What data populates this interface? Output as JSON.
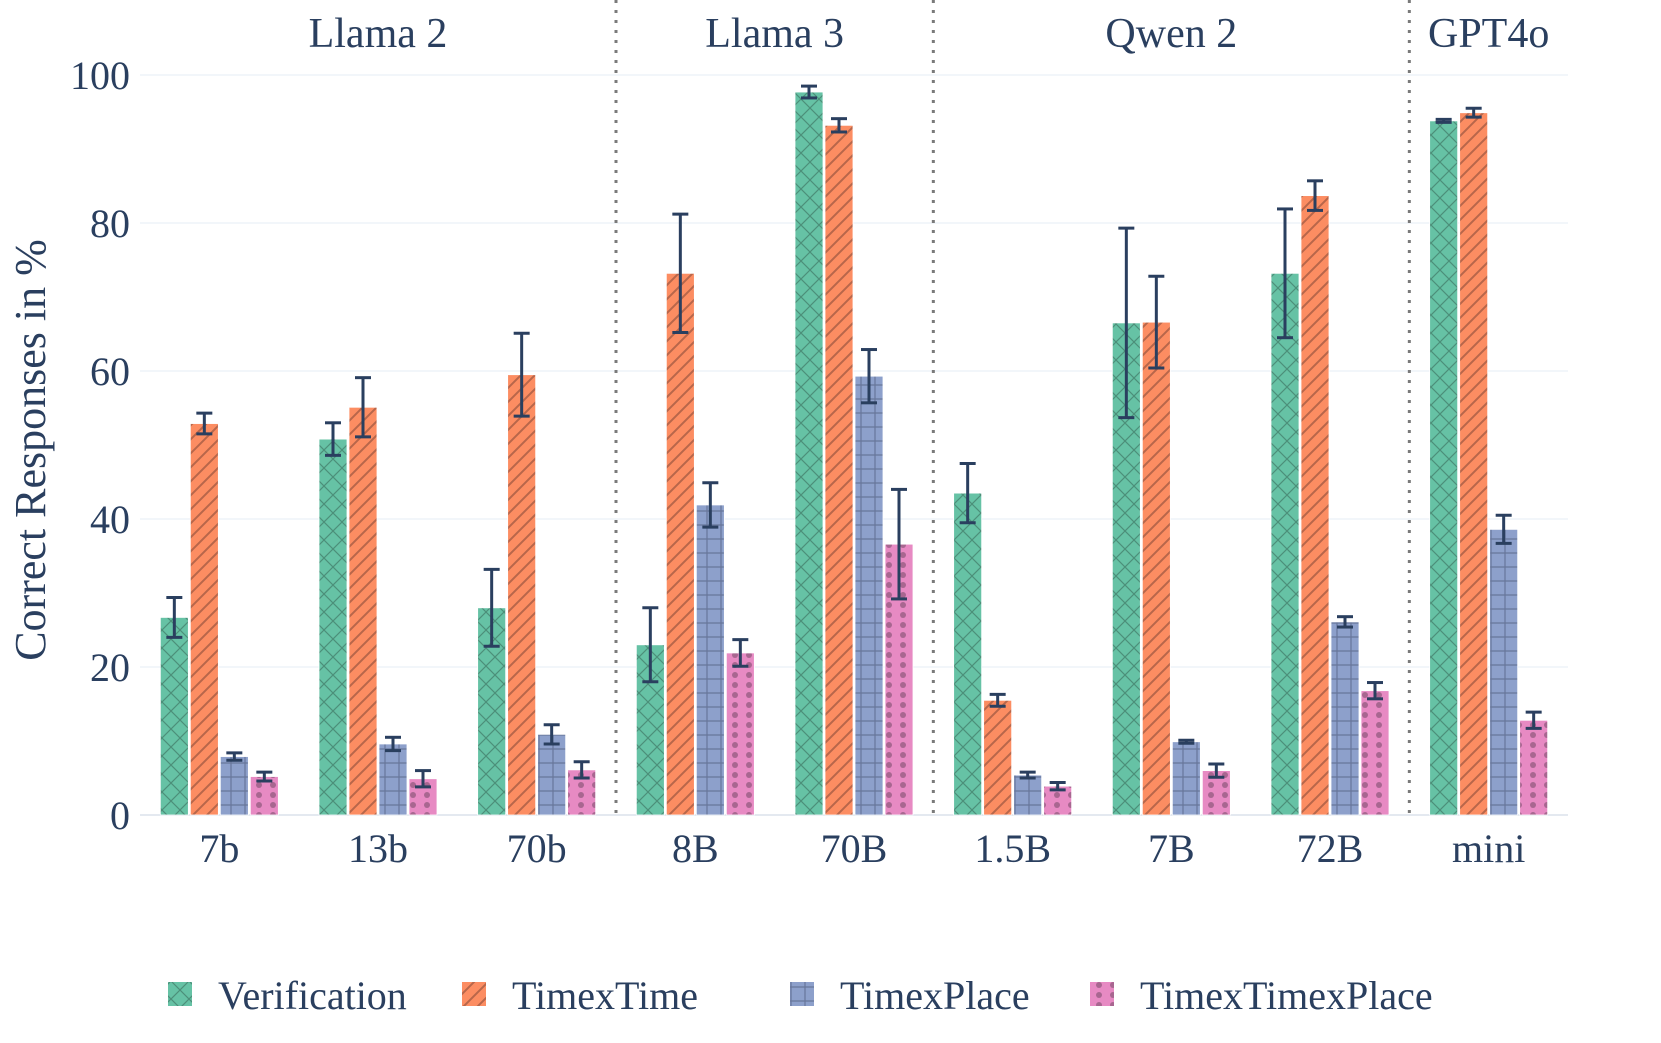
{
  "chart_data": {
    "type": "bar",
    "ylabel": "Correct Responses in %",
    "xlabel": "",
    "ylim": [
      0,
      100
    ],
    "yticks": [
      0,
      20,
      40,
      60,
      80,
      100
    ],
    "grid": true,
    "legend_position": "bottom",
    "groups": [
      {
        "label": "Llama 2",
        "categories": [
          "7b",
          "13b",
          "70b"
        ]
      },
      {
        "label": "Llama 3",
        "categories": [
          "8B",
          "70B"
        ]
      },
      {
        "label": "Qwen 2",
        "categories": [
          "1.5B",
          "7B",
          "72B"
        ]
      },
      {
        "label": "GPT4o",
        "categories": [
          "mini"
        ]
      }
    ],
    "categories": [
      "7b",
      "13b",
      "70b",
      "8B",
      "70B",
      "1.5B",
      "7B",
      "72B",
      "mini"
    ],
    "series": [
      {
        "name": "Verification",
        "color": "#66c2a5",
        "pattern": "crosshatch",
        "values": [
          26.7,
          50.8,
          28.0,
          23.0,
          97.7,
          43.5,
          66.5,
          73.2,
          93.8
        ],
        "error": [
          2.7,
          2.2,
          5.2,
          5.0,
          0.8,
          4.0,
          12.8,
          8.7,
          0.2
        ]
      },
      {
        "name": "TimexTime",
        "color": "#fc8d62",
        "pattern": "diagonal",
        "values": [
          52.9,
          55.1,
          59.5,
          73.2,
          93.2,
          15.5,
          66.6,
          83.7,
          94.9
        ],
        "error": [
          1.4,
          4.0,
          5.6,
          8.0,
          0.9,
          0.8,
          6.2,
          2.0,
          0.6
        ]
      },
      {
        "name": "TimexPlace",
        "color": "#8da0cb",
        "pattern": "grid",
        "values": [
          7.9,
          9.6,
          10.9,
          41.9,
          59.3,
          5.4,
          9.9,
          26.1,
          38.6
        ],
        "error": [
          0.5,
          0.9,
          1.3,
          3.0,
          3.6,
          0.4,
          0.2,
          0.7,
          1.9
        ]
      },
      {
        "name": "TimexTimexPlace",
        "color": "#e78ac3",
        "pattern": "dots",
        "values": [
          5.2,
          4.9,
          6.1,
          21.9,
          36.6,
          3.9,
          6.0,
          16.8,
          12.8
        ],
        "error": [
          0.6,
          1.1,
          1.1,
          1.8,
          7.4,
          0.5,
          0.9,
          1.1,
          1.1
        ]
      }
    ]
  }
}
